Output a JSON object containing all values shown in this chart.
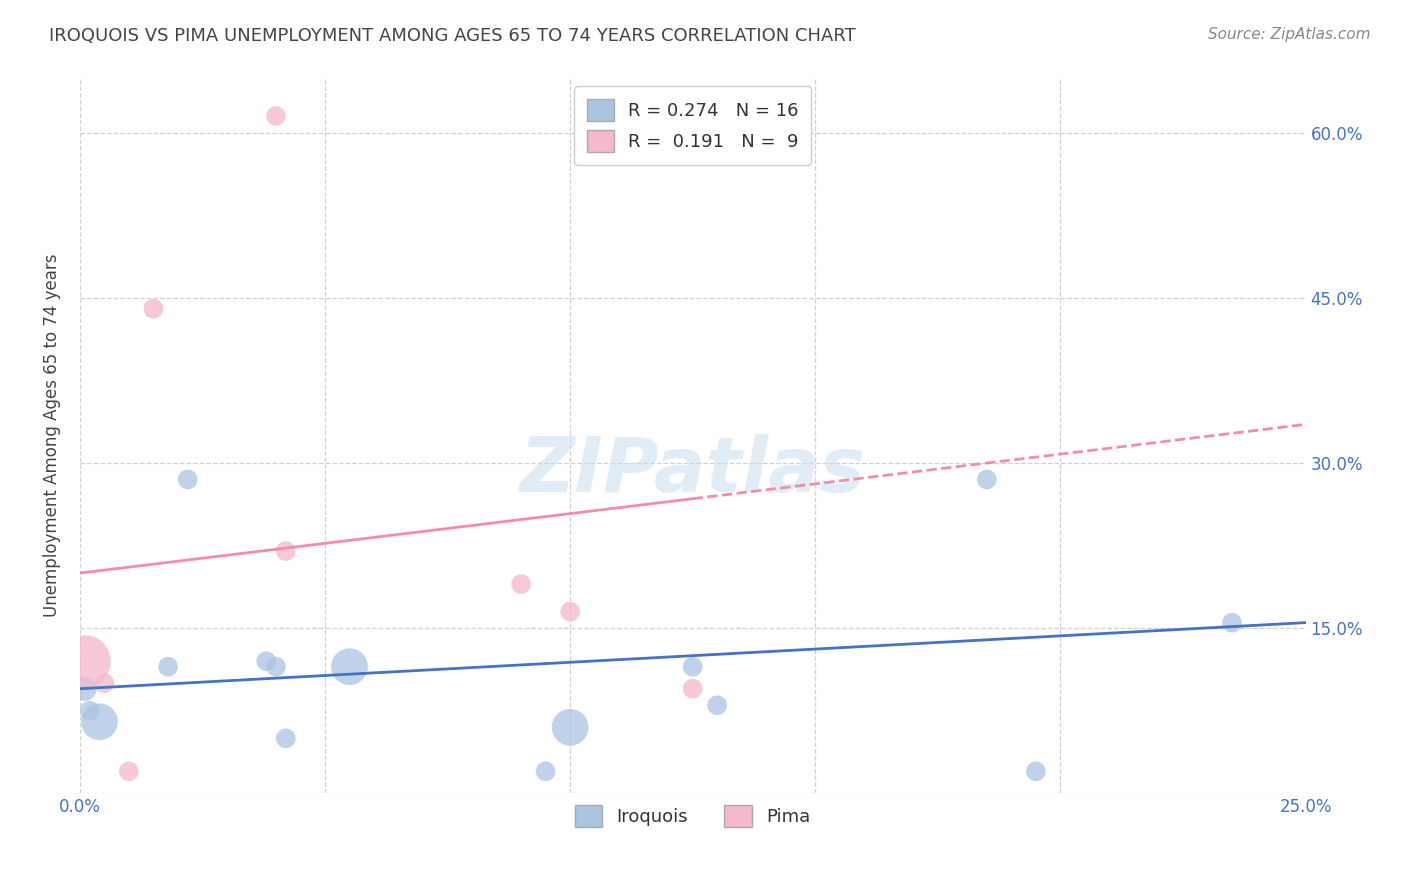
{
  "title": "IROQUOIS VS PIMA UNEMPLOYMENT AMONG AGES 65 TO 74 YEARS CORRELATION CHART",
  "source": "Source: ZipAtlas.com",
  "ylabel": "Unemployment Among Ages 65 to 74 years",
  "xlim": [
    0.0,
    0.25
  ],
  "ylim": [
    0.0,
    0.65
  ],
  "xticks": [
    0.0,
    0.05,
    0.1,
    0.15,
    0.2,
    0.25
  ],
  "yticks": [
    0.0,
    0.15,
    0.3,
    0.45,
    0.6
  ],
  "xticklabels": [
    "0.0%",
    "",
    "",
    "",
    "",
    "25.0%"
  ],
  "yticklabels": [
    "",
    "15.0%",
    "30.0%",
    "45.0%",
    "60.0%"
  ],
  "iroquois_color": "#aac4e2",
  "pima_color": "#f5b8cc",
  "iroquois_line_color": "#4472c4",
  "pima_line_color": "#f48ca8",
  "iroquois_R": 0.274,
  "iroquois_N": 16,
  "pima_R": 0.191,
  "pima_N": 9,
  "watermark": "ZIPatlas",
  "iroquois_x": [
    0.001,
    0.002,
    0.004,
    0.018,
    0.022,
    0.038,
    0.04,
    0.042,
    0.055,
    0.095,
    0.1,
    0.125,
    0.13,
    0.185,
    0.195,
    0.235
  ],
  "iroquois_y": [
    0.095,
    0.075,
    0.065,
    0.115,
    0.285,
    0.12,
    0.115,
    0.05,
    0.115,
    0.02,
    0.06,
    0.115,
    0.08,
    0.285,
    0.02,
    0.155
  ],
  "iroquois_size": [
    300,
    200,
    700,
    200,
    200,
    200,
    200,
    200,
    700,
    200,
    700,
    200,
    200,
    200,
    200,
    200
  ],
  "pima_x": [
    0.001,
    0.005,
    0.01,
    0.015,
    0.04,
    0.042,
    0.09,
    0.1,
    0.125
  ],
  "pima_y": [
    0.12,
    0.1,
    0.02,
    0.44,
    0.615,
    0.22,
    0.19,
    0.165,
    0.095
  ],
  "pima_size": [
    1400,
    200,
    200,
    200,
    200,
    200,
    200,
    200,
    200
  ],
  "background_color": "#ffffff",
  "grid_color": "#d0d0d0",
  "title_color": "#444444",
  "tick_color": "#4472c4"
}
